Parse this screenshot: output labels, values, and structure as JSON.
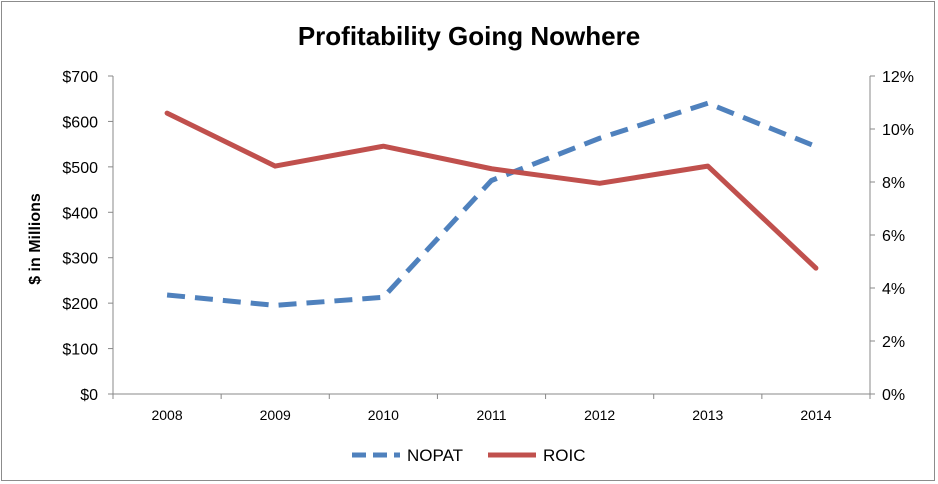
{
  "chart_data": {
    "type": "line",
    "title": "Profitability Going Nowhere",
    "ylabel": "$ in Millions",
    "y2label": "",
    "categories": [
      "2008",
      "2009",
      "2010",
      "2011",
      "2012",
      "2013",
      "2014"
    ],
    "ylim": [
      0,
      700
    ],
    "yticks": [
      0,
      100,
      200,
      300,
      400,
      500,
      600,
      700
    ],
    "ytick_labels": [
      "$0",
      "$100",
      "$200",
      "$300",
      "$400",
      "$500",
      "$600",
      "$700"
    ],
    "y2lim": [
      0,
      12
    ],
    "y2ticks": [
      0,
      2,
      4,
      6,
      8,
      10,
      12
    ],
    "y2tick_labels": [
      "0%",
      "2%",
      "4%",
      "6%",
      "8%",
      "10%",
      "12%"
    ],
    "series": [
      {
        "name": "NOPAT",
        "axis": "left",
        "unit": "$M",
        "style": "dashed",
        "color": "#4f81bd",
        "values": [
          218,
          195,
          213,
          470,
          563,
          640,
          545
        ]
      },
      {
        "name": "ROIC",
        "axis": "right",
        "unit": "%",
        "style": "solid",
        "color": "#c0504d",
        "values": [
          10.6,
          8.6,
          9.35,
          8.5,
          7.95,
          8.6,
          4.75
        ]
      }
    ],
    "grid": false,
    "legend_position": "bottom"
  }
}
